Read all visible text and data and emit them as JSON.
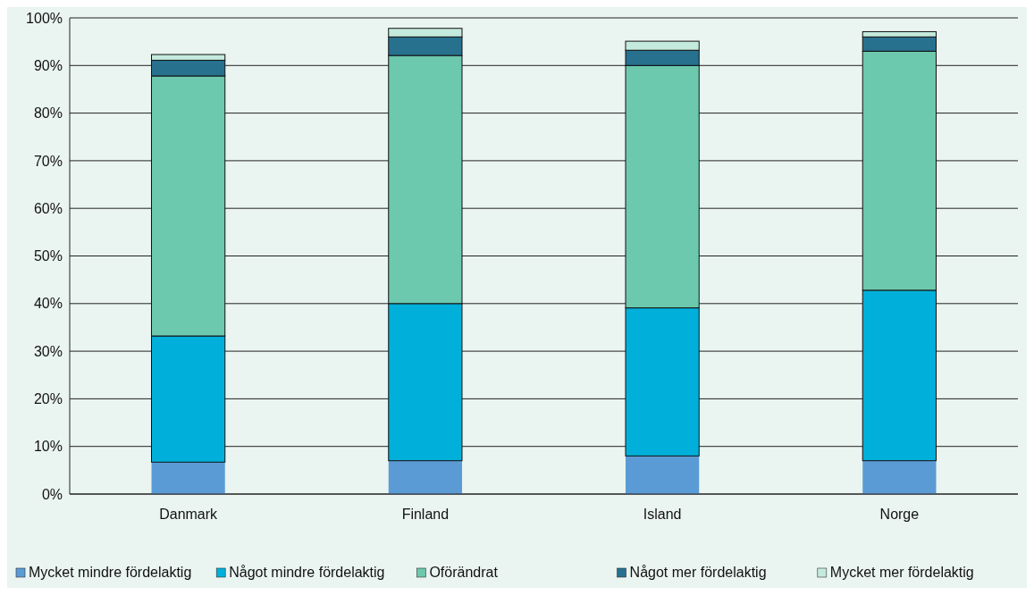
{
  "chart_data": {
    "type": "bar",
    "stacked": true,
    "categories": [
      "Danmark",
      "Finland",
      "Island",
      "Norge"
    ],
    "series": [
      {
        "name": "Mycket mindre fördelaktig",
        "color": "#5b9bd5",
        "values": [
          6.7,
          7,
          8,
          7
        ]
      },
      {
        "name": "Något mindre fördelaktig",
        "color": "#00b0da",
        "values": [
          26.5,
          33,
          31.1,
          35.8
        ]
      },
      {
        "name": "Oförändrat",
        "color": "#6cc9ad",
        "values": [
          54.6,
          52.1,
          50.9,
          50.2
        ]
      },
      {
        "name": "Något mer fördelaktig",
        "color": "#27718f",
        "values": [
          3.3,
          3.9,
          3.2,
          3
        ]
      },
      {
        "name": "Mycket mer fördelaktig",
        "color": "#c4eadd",
        "values": [
          1.2,
          1.8,
          1.9,
          1.1
        ]
      }
    ],
    "ylim": [
      0,
      100
    ],
    "yticks": [
      {
        "value": 0,
        "label": "0%"
      },
      {
        "value": 10,
        "label": "10%"
      },
      {
        "value": 20,
        "label": "20%"
      },
      {
        "value": 30,
        "label": "30%"
      },
      {
        "value": 40,
        "label": "40%"
      },
      {
        "value": 50,
        "label": "50%"
      },
      {
        "value": 60,
        "label": "60%"
      },
      {
        "value": 70,
        "label": "70%"
      },
      {
        "value": 80,
        "label": "80%"
      },
      {
        "value": 90,
        "label": "90%"
      },
      {
        "value": 100,
        "label": "100%"
      }
    ],
    "grid": "y",
    "legend": "bottom"
  }
}
